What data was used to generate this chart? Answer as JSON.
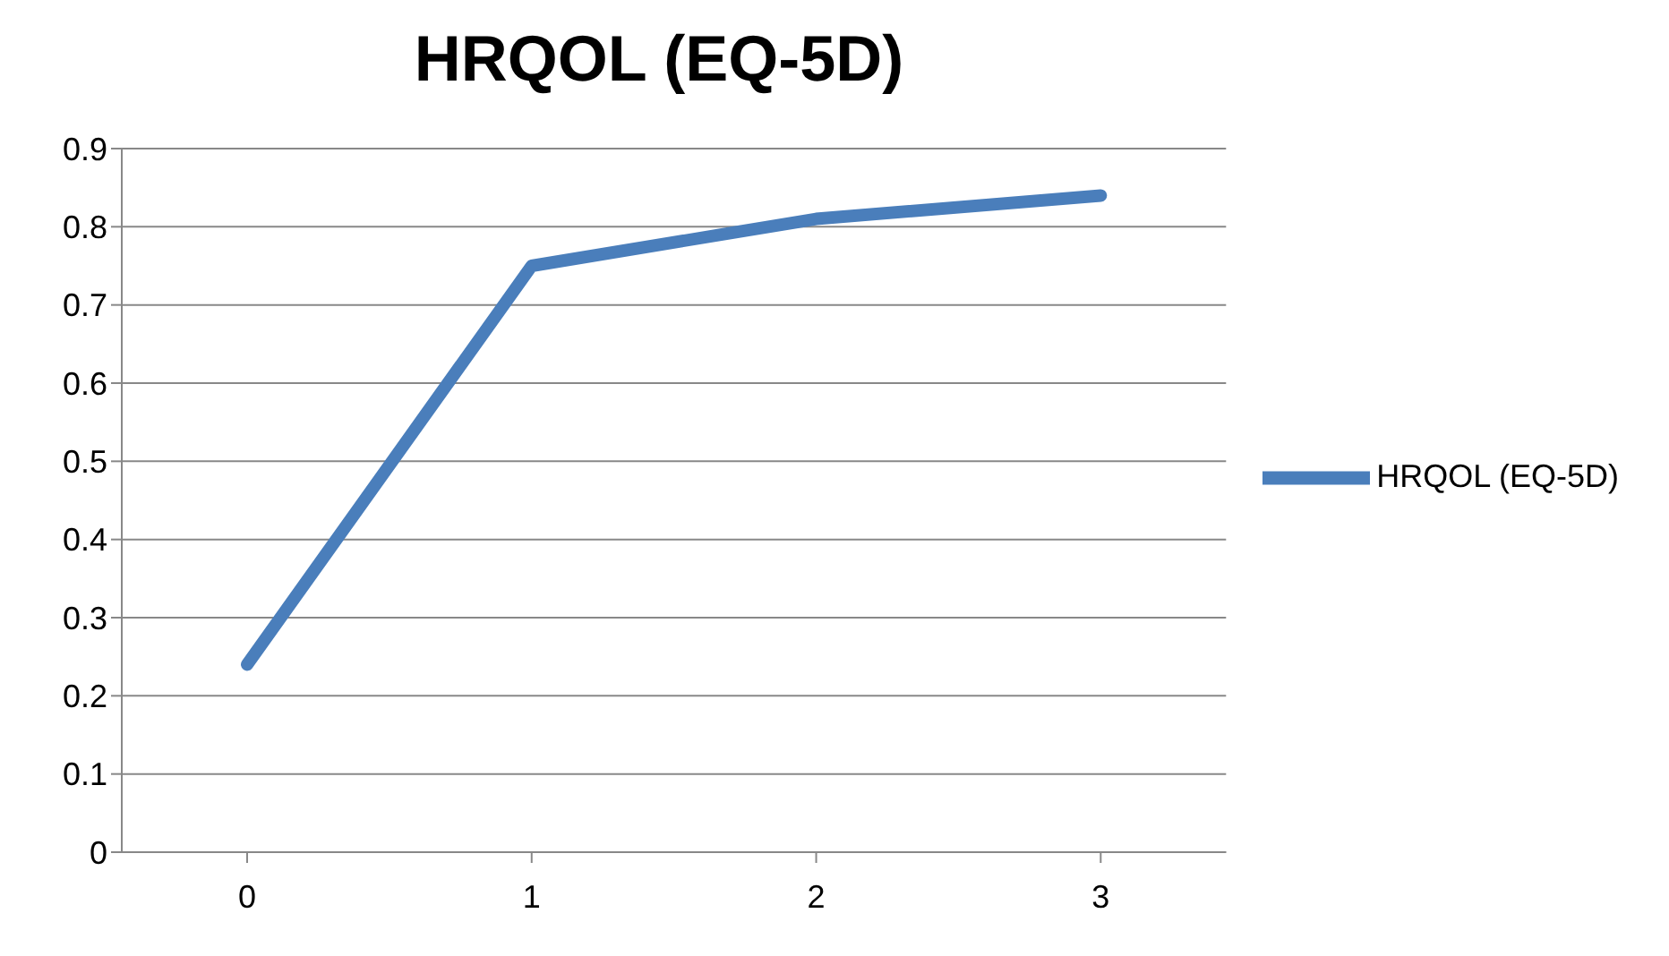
{
  "chart_data": {
    "type": "line",
    "title": "HRQOL (EQ-5D)",
    "categories": [
      "0",
      "1",
      "2",
      "3"
    ],
    "series": [
      {
        "name": "HRQOL (EQ-5D)",
        "color": "#4a7ebb",
        "values": [
          0.24,
          0.75,
          0.81,
          0.84
        ]
      }
    ],
    "ylim": [
      0,
      0.9
    ],
    "yticks": [
      0,
      0.1,
      0.2,
      0.3,
      0.4,
      0.5,
      0.6,
      0.7,
      0.8,
      0.9
    ],
    "grid": "y",
    "legend": "right",
    "marker": "none",
    "line_style": "solid"
  }
}
